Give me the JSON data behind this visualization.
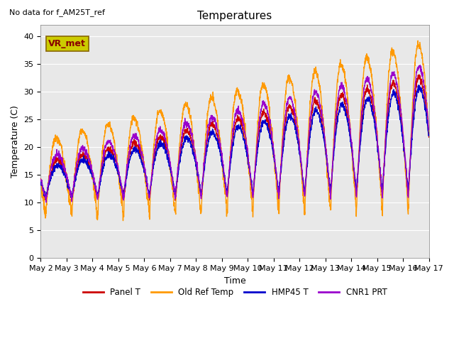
{
  "title": "Temperatures",
  "xlabel": "Time",
  "ylabel": "Temperature (C)",
  "annotation_text": "No data for f_AM25T_ref",
  "legend_box_text": "VR_met",
  "ylim": [
    0,
    42
  ],
  "yticks": [
    0,
    5,
    10,
    15,
    20,
    25,
    30,
    35,
    40
  ],
  "x_tick_labels": [
    "May 2",
    "May 3",
    "May 4",
    "May 5",
    "May 6",
    "May 7",
    "May 8",
    "May 9",
    "May 10",
    "May 11",
    "May 12",
    "May 13",
    "May 14",
    "May 15",
    "May 16",
    "May 17"
  ],
  "series_labels": [
    "Panel T",
    "Old Ref Temp",
    "HMP45 T",
    "CNR1 PRT"
  ],
  "series_colors": [
    "#cc0000",
    "#ff9900",
    "#0000cc",
    "#9900cc"
  ],
  "background_color": "#e8e8e8",
  "figure_background": "#ffffff",
  "title_fontsize": 11,
  "axis_label_fontsize": 9,
  "tick_fontsize": 8,
  "legend_box_color": "#cccc00",
  "legend_box_text_color": "#880000",
  "lw": 1.0
}
